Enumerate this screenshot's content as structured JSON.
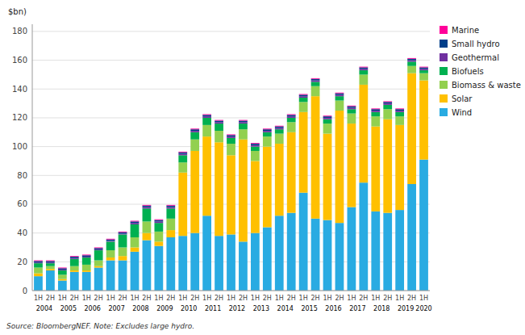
{
  "chart_data": {
    "type": "bar",
    "stacked": true,
    "grid": true,
    "legend": "upper right",
    "y_label": "$bn)",
    "source": "Source: BloombergNEF. Note: Excludes large hydro.",
    "categories": [
      "1H",
      "2H",
      "1H",
      "2H",
      "1H",
      "2H",
      "1H",
      "2H",
      "1H",
      "2H",
      "1H",
      "2H",
      "1H",
      "2H",
      "1H",
      "2H",
      "1H",
      "2H",
      "1H",
      "2H",
      "1H",
      "2H",
      "1H",
      "2H",
      "1H",
      "2H",
      "1H",
      "2H",
      "1H",
      "2H",
      "1H",
      "2H",
      "1H"
    ],
    "annotations": [
      "2004",
      "2005",
      "2006",
      "2007",
      "2008",
      "2009",
      "2010",
      "2011",
      "2012",
      "2013",
      "2014",
      "2015",
      "2016",
      "2017",
      "2018",
      "2019",
      "2020"
    ],
    "series": [
      {
        "name": "Wind",
        "color": "#29ABE2",
        "values": [
          10,
          14,
          7,
          13,
          13,
          16,
          21,
          21,
          27,
          35,
          31,
          37,
          38,
          40,
          52,
          38,
          39,
          34,
          40,
          44,
          52,
          54,
          68,
          50,
          49,
          47,
          58,
          75,
          55,
          54,
          56,
          74,
          91
        ]
      },
      {
        "name": "Solar",
        "color": "#FFC000",
        "values": [
          2,
          1,
          1,
          1,
          1,
          1,
          2,
          3,
          3,
          5,
          3,
          5,
          44,
          57,
          55,
          65,
          55,
          71,
          50,
          56,
          50,
          56,
          56,
          85,
          60,
          78,
          58,
          68,
          59,
          65,
          59,
          77,
          55
        ]
      },
      {
        "name": "Biomass & waste",
        "color": "#92D050",
        "values": [
          4,
          2,
          3,
          3,
          4,
          4,
          5,
          6,
          7,
          8,
          7,
          8,
          7,
          8,
          8,
          8,
          8,
          7,
          7,
          7,
          7,
          7,
          7,
          7,
          7,
          7,
          7,
          7,
          7,
          7,
          6,
          5,
          5
        ]
      },
      {
        "name": "Biofuels",
        "color": "#00B050",
        "values": [
          3,
          2,
          3,
          5,
          5,
          7,
          6,
          9,
          9,
          9,
          6,
          7,
          5,
          5,
          5,
          5,
          4,
          4,
          3,
          3,
          3,
          3,
          3,
          3,
          3,
          3,
          3,
          3,
          3,
          3,
          3,
          3,
          2
        ]
      },
      {
        "name": "Geothermal",
        "color": "#7030A0",
        "values": [
          0.5,
          0.5,
          0.5,
          0.5,
          0.5,
          0.5,
          0.5,
          0.5,
          1,
          1,
          1,
          1,
          1,
          1,
          1,
          1,
          1,
          1,
          1,
          1,
          1,
          1,
          1,
          1,
          1,
          1,
          1,
          1,
          1,
          1,
          1,
          1,
          1
        ]
      },
      {
        "name": "Small hydro",
        "color": "#003f8a",
        "values": [
          1,
          1,
          1,
          1,
          1,
          1,
          1,
          1,
          1,
          1,
          1,
          1,
          1,
          1,
          1,
          1,
          1,
          1,
          1,
          1,
          1,
          1,
          1,
          1,
          1,
          1,
          1,
          1,
          1,
          1,
          1,
          1,
          1
        ]
      },
      {
        "name": "Marine",
        "color": "#FF0099",
        "values": [
          0.5,
          0.5,
          0.5,
          0.5,
          0.5,
          0.5,
          0.5,
          0.5,
          0.5,
          0.5,
          0.5,
          0.5,
          0.5,
          0.5,
          0.5,
          0.5,
          0.5,
          0.5,
          0.5,
          0.5,
          0.5,
          0.5,
          0.5,
          0.5,
          0.5,
          0.5,
          0.5,
          0.5,
          0.5,
          0.5,
          0.5,
          0.5,
          0.5
        ]
      }
    ],
    "ylim": [
      0,
      185
    ],
    "yticks": [
      0,
      20,
      40,
      60,
      80,
      100,
      120,
      140,
      160,
      180
    ]
  }
}
